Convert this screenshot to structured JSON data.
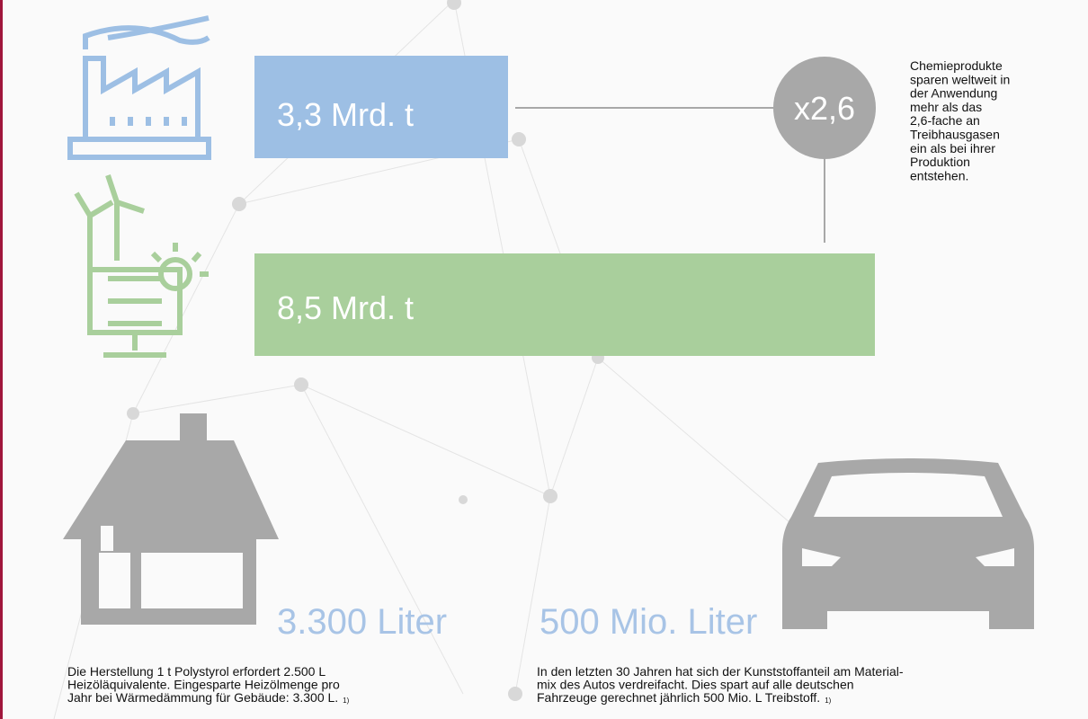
{
  "production": {
    "value_label": "3,3 Mrd. t"
  },
  "savings": {
    "value_label": "8,5 Mrd. t"
  },
  "factor": {
    "label": "x2,6"
  },
  "note": {
    "lines": [
      "Chemieprodukte",
      "sparen weltweit in",
      "der Anwendung",
      "mehr als das",
      "2,6-fache an",
      "Treibhausgasen",
      "ein als bei ihrer",
      "Produktion",
      "entstehen."
    ]
  },
  "house": {
    "value_label": "3.300 Liter",
    "lines": [
      "Die Herstellung 1 t Polystyrol erfordert 2.500 L",
      "Heizöläquivalente. Eingesparte Heizölmenge pro",
      "Jahr bei Wärmedämmung für Gebäude: 3.300 L."
    ],
    "footnote": "1)"
  },
  "car": {
    "value_label": "500 Mio. Liter",
    "lines": [
      "In den letzten 30 Jahren hat sich der Kunststoffanteil am Material-",
      "mix des Autos verdreifacht. Dies spart auf alle deutschen",
      "Fahrzeuge gerechnet jährlich 500 Mio. L Treibstoff."
    ],
    "footnote": "1)"
  }
}
